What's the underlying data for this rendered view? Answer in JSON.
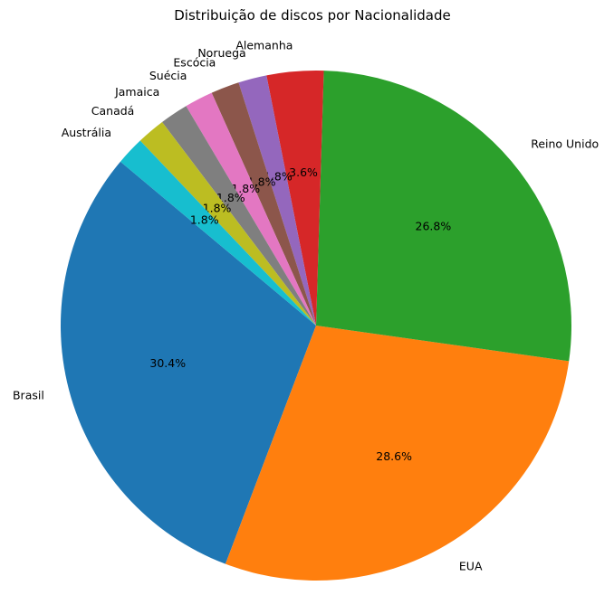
{
  "chart_data": {
    "type": "pie",
    "title": "Distribuição de discos por Nacionalidade",
    "start_angle_deg": 140,
    "direction": "counterclockwise",
    "slices": [
      {
        "label": "Brasil",
        "value": 30.4,
        "pct_label": "30.4%",
        "color": "#1f77b4"
      },
      {
        "label": "EUA",
        "value": 28.6,
        "pct_label": "28.6%",
        "color": "#ff7f0e"
      },
      {
        "label": "Reino Unido",
        "value": 26.8,
        "pct_label": "26.8%",
        "color": "#2ca02c"
      },
      {
        "label": "Alemanha",
        "value": 3.6,
        "pct_label": "3.6%",
        "color": "#d62728"
      },
      {
        "label": "Noruega",
        "value": 1.8,
        "pct_label": "1.8%",
        "color": "#9467bd"
      },
      {
        "label": "Escócia",
        "value": 1.8,
        "pct_label": "1.8%",
        "color": "#8c564b"
      },
      {
        "label": "Suécia",
        "value": 1.8,
        "pct_label": "1.8%",
        "color": "#e377c2"
      },
      {
        "label": "Jamaica",
        "value": 1.8,
        "pct_label": "1.8%",
        "color": "#7f7f7f"
      },
      {
        "label": "Canadá",
        "value": 1.8,
        "pct_label": "1.8%",
        "color": "#bcbd22"
      },
      {
        "label": "Austrália",
        "value": 1.8,
        "pct_label": "1.8%",
        "color": "#17becf"
      }
    ]
  }
}
